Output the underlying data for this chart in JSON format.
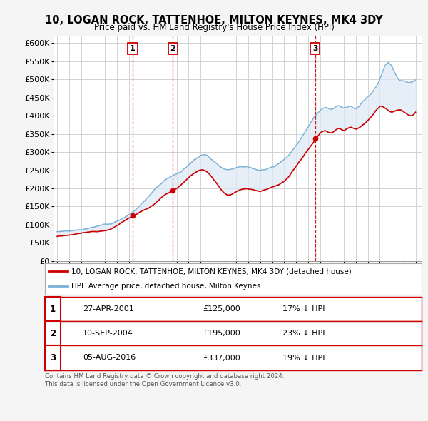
{
  "title": "10, LOGAN ROCK, TATTENHOE, MILTON KEYNES, MK4 3DY",
  "subtitle": "Price paid vs. HM Land Registry's House Price Index (HPI)",
  "ylim": [
    0,
    620000
  ],
  "yticks": [
    0,
    50000,
    100000,
    150000,
    200000,
    250000,
    300000,
    350000,
    400000,
    450000,
    500000,
    550000,
    600000
  ],
  "xlim_start": 1994.7,
  "xlim_end": 2025.5,
  "sale_color": "#cc0000",
  "hpi_color": "#7ab0d4",
  "fill_color": "#dce9f5",
  "vline_color": "#cc0000",
  "background_color": "#f5f5f5",
  "plot_background": "#ffffff",
  "grid_color": "#cccccc",
  "sales": [
    {
      "date": 2001.32,
      "price": 125000,
      "label": "1"
    },
    {
      "date": 2004.69,
      "price": 195000,
      "label": "2"
    },
    {
      "date": 2016.59,
      "price": 337000,
      "label": "3"
    }
  ],
  "legend_line1": "10, LOGAN ROCK, TATTENHOE, MILTON KEYNES, MK4 3DY (detached house)",
  "legend_line2": "HPI: Average price, detached house, Milton Keynes",
  "table_rows": [
    {
      "num": "1",
      "date": "27-APR-2001",
      "price": "£125,000",
      "hpi": "17% ↓ HPI"
    },
    {
      "num": "2",
      "date": "10-SEP-2004",
      "price": "£195,000",
      "hpi": "23% ↓ HPI"
    },
    {
      "num": "3",
      "date": "05-AUG-2016",
      "price": "£337,000",
      "hpi": "19% ↓ HPI"
    }
  ],
  "footer": "Contains HM Land Registry data © Crown copyright and database right 2024.\nThis data is licensed under the Open Government Licence v3.0."
}
